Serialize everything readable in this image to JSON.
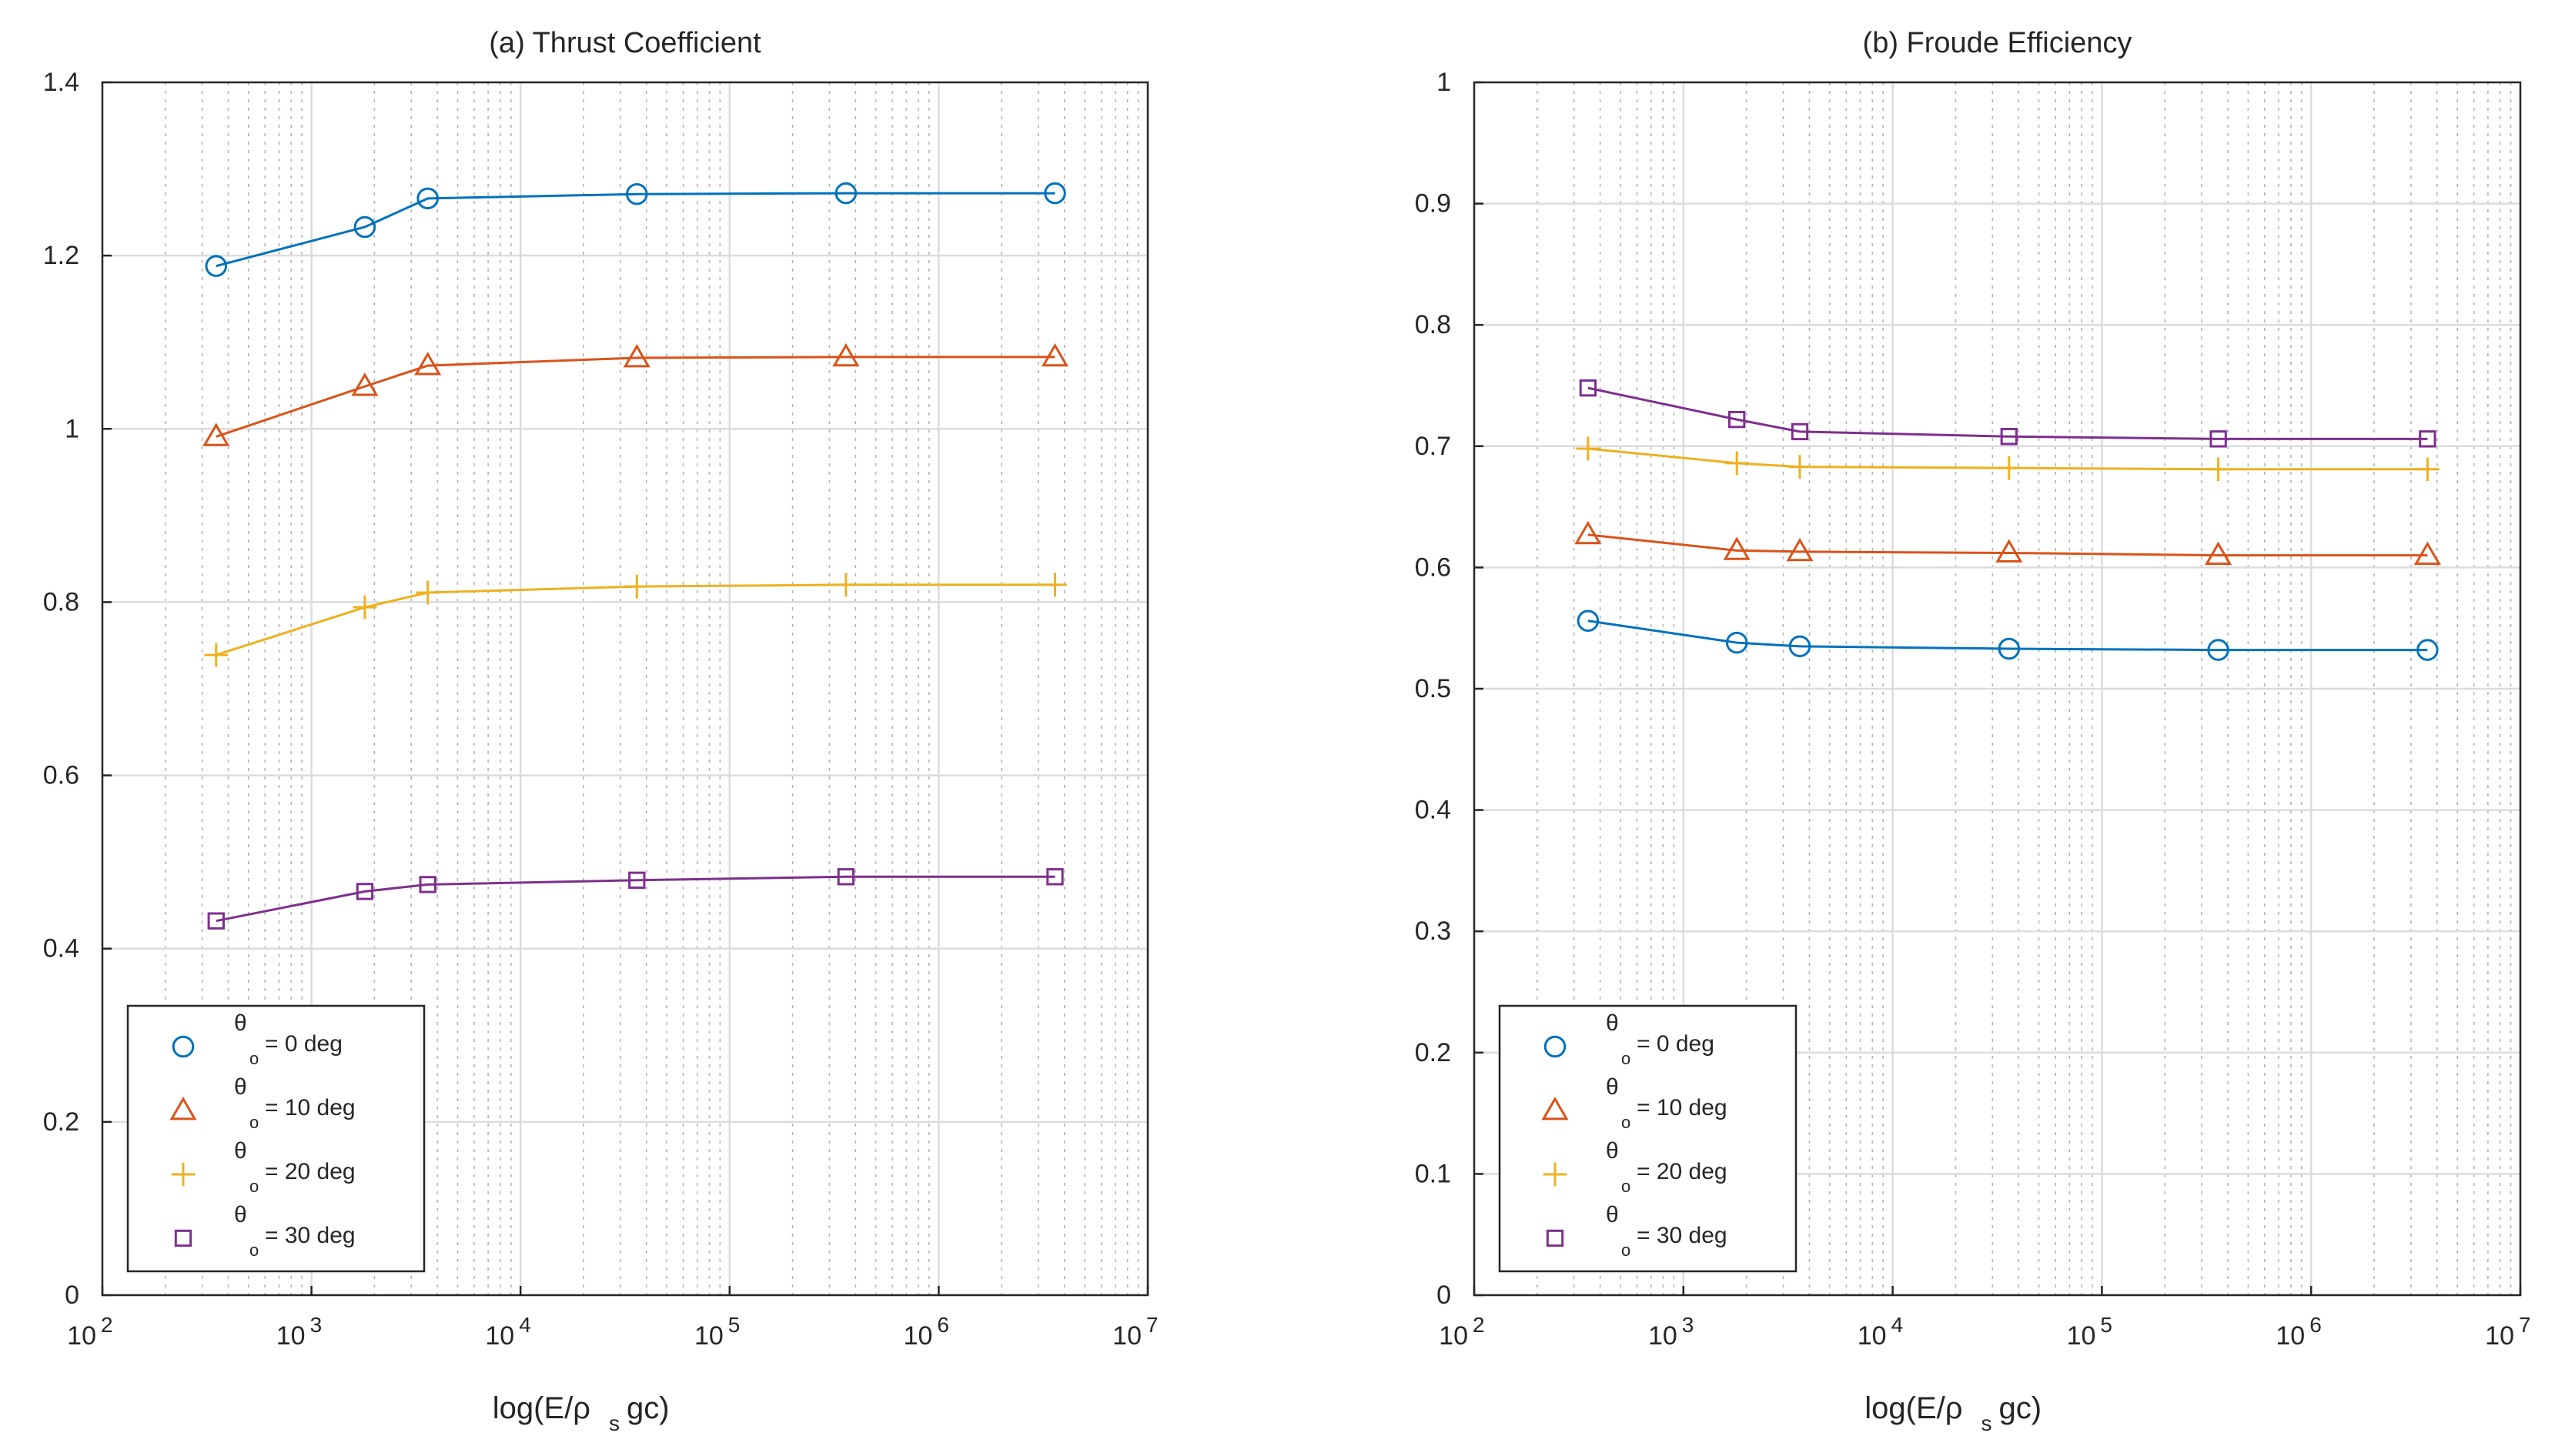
{
  "figure": {
    "panels_count": 2
  },
  "chart_data": [
    {
      "type": "line",
      "panel_id": "a",
      "title": "(a) Thrust Coefficient",
      "xlabel": {
        "main": "log(E/ρ",
        "sub": "s",
        "tail": "gc)"
      },
      "ylabel": "",
      "xscale": "log",
      "xlim": [
        100,
        10000000
      ],
      "ylim": [
        0,
        1.4
      ],
      "x_ticks": [
        {
          "base": "10",
          "exp": "2"
        },
        {
          "base": "10",
          "exp": "3"
        },
        {
          "base": "10",
          "exp": "4"
        },
        {
          "base": "10",
          "exp": "5"
        },
        {
          "base": "10",
          "exp": "6"
        },
        {
          "base": "10",
          "exp": "7"
        }
      ],
      "y_ticks": [
        0,
        0.2,
        0.4,
        0.6,
        0.8,
        1,
        1.2,
        1.4
      ],
      "y_tick_labels": [
        "0",
        "0.2",
        "0.4",
        "0.6",
        "0.8",
        "1",
        "1.2",
        "1.4"
      ],
      "grid": true,
      "legend_position": "bottom-left",
      "x": [
        350,
        1800,
        3600,
        36000,
        360000,
        3600000
      ],
      "series": [
        {
          "name": "θo = 0 deg",
          "symbol": "θ",
          "sub": "o",
          "label": "= 0 deg",
          "marker": "circle",
          "color": "#0072BD",
          "values": [
            1.188,
            1.233,
            1.266,
            1.271,
            1.272,
            1.272
          ]
        },
        {
          "name": "θo = 10 deg",
          "symbol": "θ",
          "sub": "o",
          "label": "= 10 deg",
          "marker": "triangle",
          "color": "#D95319",
          "values": [
            0.991,
            1.049,
            1.073,
            1.082,
            1.083,
            1.083
          ]
        },
        {
          "name": "θo = 20 deg",
          "symbol": "θ",
          "sub": "o",
          "label": "= 20 deg",
          "marker": "plus",
          "color": "#EDB120",
          "values": [
            0.739,
            0.794,
            0.811,
            0.818,
            0.82,
            0.82
          ]
        },
        {
          "name": "θo = 30 deg",
          "symbol": "θ",
          "sub": "o",
          "label": "= 30 deg",
          "marker": "square",
          "color": "#7E2F8E",
          "values": [
            0.432,
            0.466,
            0.474,
            0.479,
            0.483,
            0.483
          ]
        }
      ]
    },
    {
      "type": "line",
      "panel_id": "b",
      "title": "(b) Froude Efficiency",
      "xlabel": {
        "main": "log(E/ρ",
        "sub": "s",
        "tail": "gc)"
      },
      "ylabel": "",
      "xscale": "log",
      "xlim": [
        100,
        10000000
      ],
      "ylim": [
        0,
        1
      ],
      "x_ticks": [
        {
          "base": "10",
          "exp": "2"
        },
        {
          "base": "10",
          "exp": "3"
        },
        {
          "base": "10",
          "exp": "4"
        },
        {
          "base": "10",
          "exp": "5"
        },
        {
          "base": "10",
          "exp": "6"
        },
        {
          "base": "10",
          "exp": "7"
        }
      ],
      "y_ticks": [
        0,
        0.1,
        0.2,
        0.3,
        0.4,
        0.5,
        0.6,
        0.7,
        0.8,
        0.9,
        1
      ],
      "y_tick_labels": [
        "0",
        "0.1",
        "0.2",
        "0.3",
        "0.4",
        "0.5",
        "0.6",
        "0.7",
        "0.8",
        "0.9",
        "1"
      ],
      "grid": true,
      "legend_position": "bottom-left",
      "x": [
        350,
        1800,
        3600,
        36000,
        360000,
        3600000
      ],
      "series": [
        {
          "name": "θo = 0 deg",
          "symbol": "θ",
          "sub": "o",
          "label": "= 0 deg",
          "marker": "circle",
          "color": "#0072BD",
          "values": [
            0.556,
            0.538,
            0.535,
            0.533,
            0.532,
            0.532
          ]
        },
        {
          "name": "θo = 10 deg",
          "symbol": "θ",
          "sub": "o",
          "label": "= 10 deg",
          "marker": "triangle",
          "color": "#D95319",
          "values": [
            0.627,
            0.614,
            0.613,
            0.612,
            0.61,
            0.61
          ]
        },
        {
          "name": "θo = 20 deg",
          "symbol": "θ",
          "sub": "o",
          "label": "= 20 deg",
          "marker": "plus",
          "color": "#EDB120",
          "values": [
            0.698,
            0.686,
            0.683,
            0.682,
            0.681,
            0.681
          ]
        },
        {
          "name": "θo = 30 deg",
          "symbol": "θ",
          "sub": "o",
          "label": "= 30 deg",
          "marker": "square",
          "color": "#7E2F8E",
          "values": [
            0.748,
            0.722,
            0.712,
            0.708,
            0.706,
            0.706
          ]
        }
      ]
    }
  ]
}
